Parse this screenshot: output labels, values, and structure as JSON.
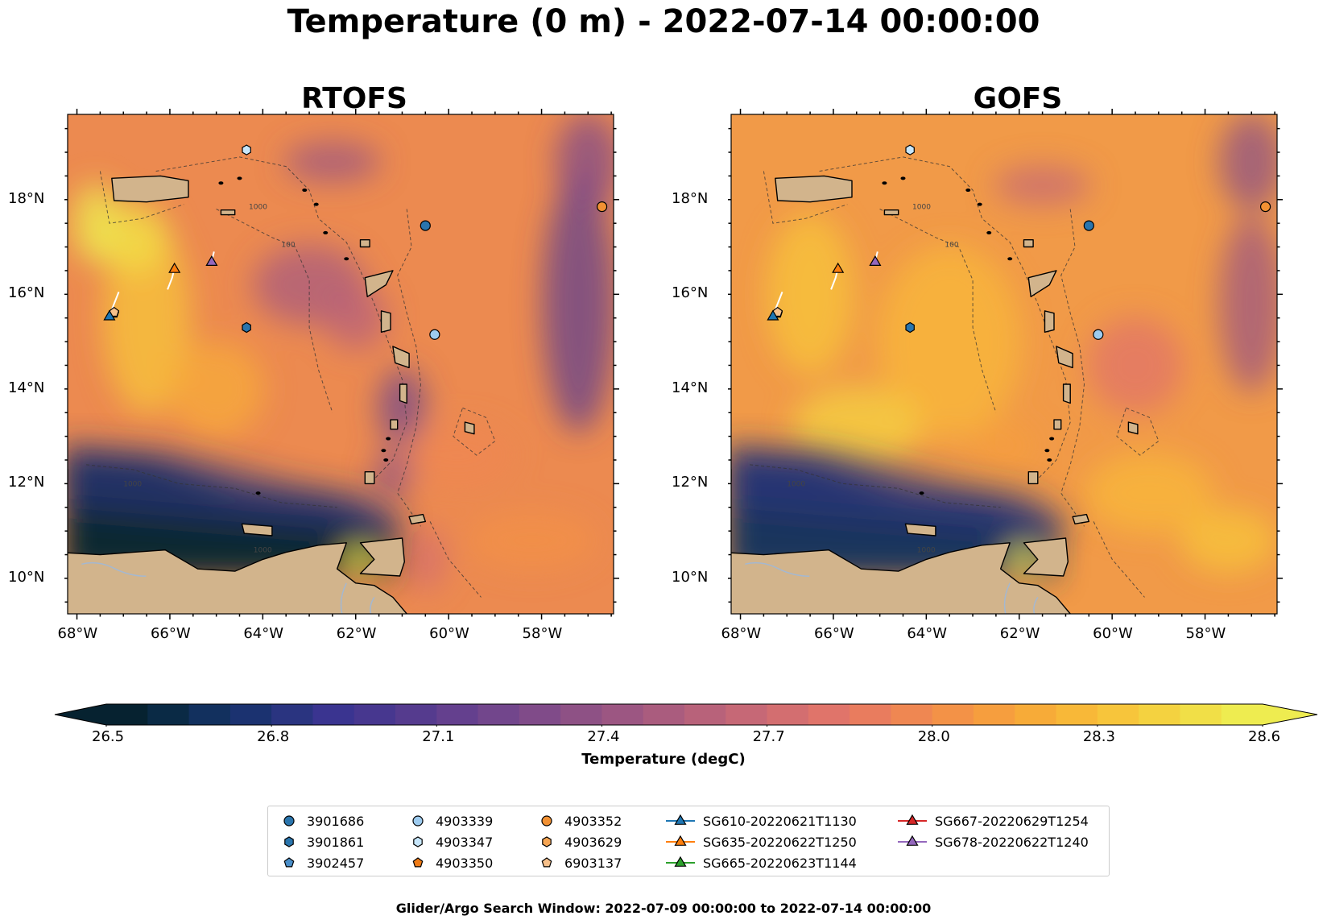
{
  "suptitle": "Temperature (0 m) - 2022-07-14 00:00:00",
  "panels": [
    {
      "title": "RTOFS"
    },
    {
      "title": "GOFS"
    }
  ],
  "axes": {
    "lon_labels": [
      "68°W",
      "66°W",
      "64°W",
      "62°W",
      "60°W",
      "58°W"
    ],
    "lat_labels": [
      "18°N",
      "16°N",
      "14°N",
      "12°N",
      "10°N"
    ]
  },
  "colorbar": {
    "label": "Temperature (degC)",
    "ticks": [
      "26.5",
      "26.8",
      "27.1",
      "27.4",
      "27.7",
      "28.0",
      "28.3",
      "28.6"
    ],
    "colors": [
      "#062230",
      "#0a2a45",
      "#12305e",
      "#1b3270",
      "#2a3480",
      "#3a3490",
      "#47378f",
      "#553b8e",
      "#64408e",
      "#72468c",
      "#804b89",
      "#8e5185",
      "#9c5682",
      "#aa5c7e",
      "#b8627a",
      "#c66876",
      "#d36e70",
      "#e0746a",
      "#e97c5e",
      "#ef8752",
      "#f39247",
      "#f69e3e",
      "#f7ab38",
      "#f8b838",
      "#f7c53b",
      "#f4d240",
      "#f1df47",
      "#eeec50"
    ],
    "range": [
      26.5,
      28.6
    ]
  },
  "contour_labels": [
    "1000",
    "100",
    "1000",
    "1000"
  ],
  "legend": {
    "items": [
      {
        "label": "3901686",
        "marker": "circle",
        "color": "#2a75ad"
      },
      {
        "label": "3901861",
        "marker": "hexagon",
        "color": "#2a75ad"
      },
      {
        "label": "3902457",
        "marker": "pentagon",
        "color": "#4a8fca"
      },
      {
        "label": "4903339",
        "marker": "circle",
        "color": "#9dcbef"
      },
      {
        "label": "4903347",
        "marker": "hexagon",
        "color": "#c7e6fb"
      },
      {
        "label": "4903350",
        "marker": "pentagon",
        "color": "#ef7b16"
      },
      {
        "label": "4903352",
        "marker": "circle",
        "color": "#f29133"
      },
      {
        "label": "4903629",
        "marker": "hexagon",
        "color": "#f6a553"
      },
      {
        "label": "6903137",
        "marker": "pentagon",
        "color": "#f7c08a"
      },
      {
        "label": "SG610-20220621T1130",
        "marker": "triangle",
        "color": "#1f77b4"
      },
      {
        "label": "SG635-20220622T1250",
        "marker": "triangle",
        "color": "#ff7f0e"
      },
      {
        "label": "SG665-20220623T1144",
        "marker": "triangle",
        "color": "#2ca02c"
      },
      {
        "label": "SG667-20220629T1254",
        "marker": "triangle",
        "color": "#d62728"
      },
      {
        "label": "SG678-20220622T1240",
        "marker": "triangle",
        "color": "#9467bd"
      }
    ]
  },
  "markers": [
    {
      "id": "3901686",
      "lon": -60.5,
      "lat": 17.45,
      "marker": "circle",
      "color": "#2a75ad"
    },
    {
      "id": "3901861",
      "lon": -64.35,
      "lat": 15.3,
      "marker": "hexagon",
      "color": "#2a75ad"
    },
    {
      "id": "3902457",
      "lon": -67.2,
      "lat": 15.6,
      "marker": "pentagon",
      "color": "#4a8fca"
    },
    {
      "id": "4903339",
      "lon": -60.3,
      "lat": 15.15,
      "marker": "circle",
      "color": "#9dcbef"
    },
    {
      "id": "4903347",
      "lon": -64.35,
      "lat": 19.05,
      "marker": "hexagon",
      "color": "#c7e6fb"
    },
    {
      "id": "4903352",
      "lon": -56.7,
      "lat": 17.85,
      "marker": "circle",
      "color": "#f29133"
    },
    {
      "id": "6903137",
      "lon": -67.2,
      "lat": 15.62,
      "marker": "pentagon",
      "color": "#f7c08a"
    },
    {
      "id": "SG610-20220621T1130",
      "lon": -67.3,
      "lat": 15.55,
      "marker": "triangle",
      "color": "#1f77b4"
    },
    {
      "id": "SG635-20220622T1250",
      "lon": -65.9,
      "lat": 16.55,
      "marker": "triangle",
      "color": "#ff7f0e"
    },
    {
      "id": "SG678-20220622T1240",
      "lon": -65.1,
      "lat": 16.7,
      "marker": "triangle",
      "color": "#9467bd"
    }
  ],
  "footer": "Glider/Argo Search Window: 2022-07-09 00:00:00 to 2022-07-14 00:00:00"
}
